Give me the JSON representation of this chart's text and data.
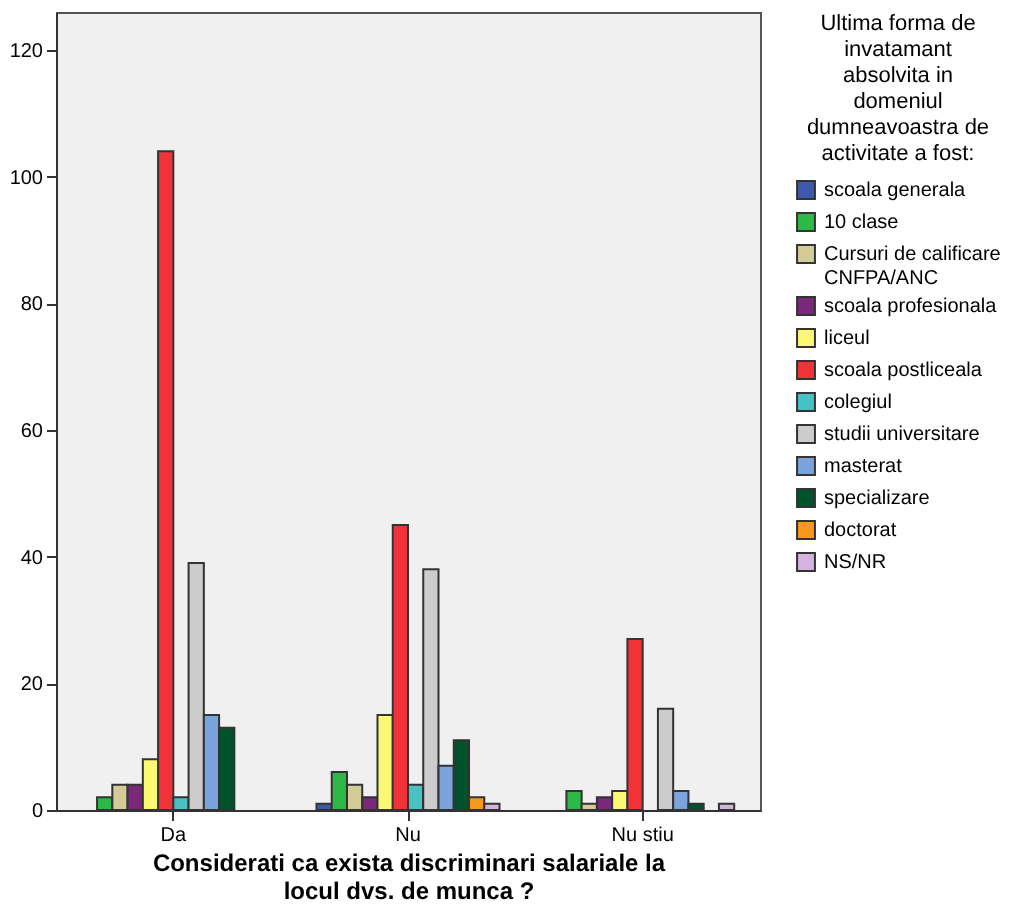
{
  "chart_data": {
    "type": "bar",
    "xlabel": "Considerati ca exista discriminari salariale la locul dvs. de munca ?",
    "legend_title": "Ultima forma de invatamant absolvita in domeniul dumneavoastra de activitate a fost:",
    "categories": [
      "Da",
      "Nu",
      "Nu stiu"
    ],
    "ylim": [
      0,
      126
    ],
    "yticks": [
      0,
      20,
      40,
      60,
      80,
      100,
      120
    ],
    "grid": false,
    "legend": "right",
    "series": [
      {
        "name": "scoala generala",
        "color": "#3e58ac",
        "values": [
          0,
          1,
          0
        ]
      },
      {
        "name": "10 clase",
        "color": "#2eb848",
        "values": [
          2,
          6,
          3
        ]
      },
      {
        "name": "Cursuri de calificare CNFPA/ANC",
        "color": "#d4cc98",
        "values": [
          4,
          4,
          1
        ]
      },
      {
        "name": "scoala profesionala",
        "color": "#79287a",
        "values": [
          4,
          2,
          2
        ]
      },
      {
        "name": "liceul",
        "color": "#fbf873",
        "values": [
          8,
          15,
          3
        ]
      },
      {
        "name": "scoala postliceala",
        "color": "#ef3338",
        "values": [
          104,
          45,
          27
        ]
      },
      {
        "name": "colegiul",
        "color": "#48c2c5",
        "values": [
          2,
          4,
          0
        ]
      },
      {
        "name": "studii universitare",
        "color": "#cccccc",
        "values": [
          39,
          38,
          16
        ]
      },
      {
        "name": "masterat",
        "color": "#7ba4dd",
        "values": [
          15,
          7,
          3
        ]
      },
      {
        "name": "specializare",
        "color": "#00532a",
        "values": [
          13,
          11,
          1
        ]
      },
      {
        "name": "doctorat",
        "color": "#f8981d",
        "values": [
          0,
          2,
          0
        ]
      },
      {
        "name": "NS/NR",
        "color": "#d3b4e0",
        "values": [
          0,
          1,
          1
        ]
      }
    ]
  }
}
